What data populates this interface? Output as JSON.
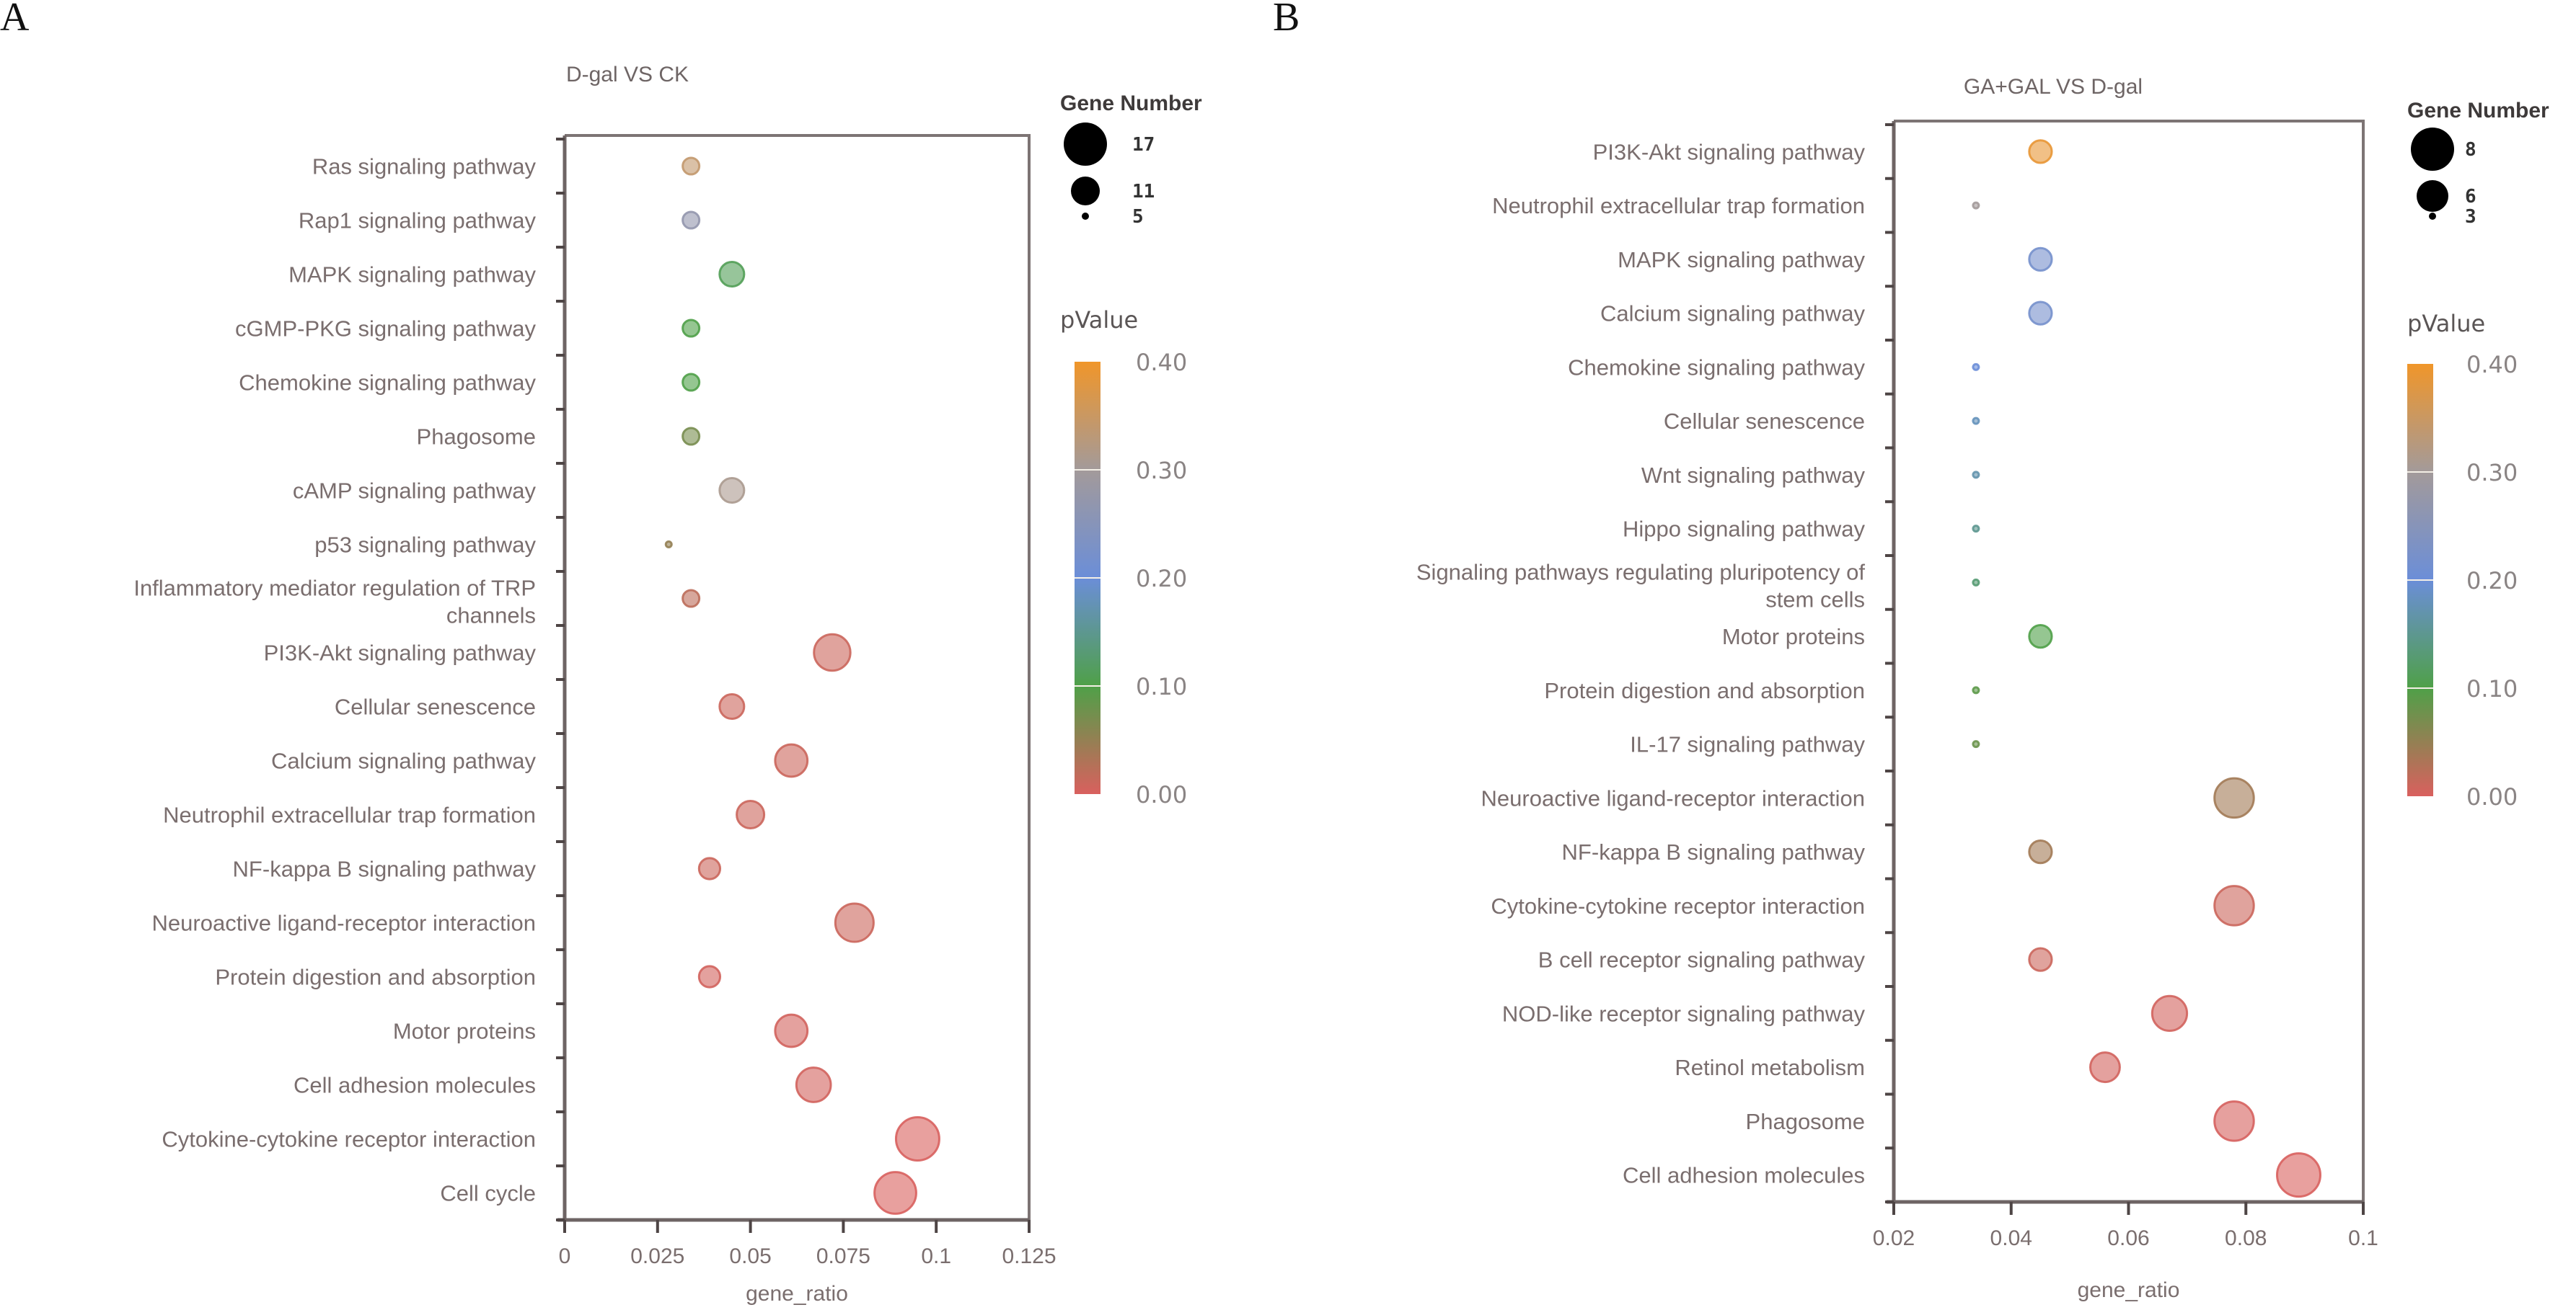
{
  "panels": [
    "A",
    "B"
  ],
  "chart_data": [
    {
      "type": "scatter",
      "subtype": "bubble",
      "panel": "A",
      "title": "D-gal VS CK",
      "xlabel": "gene_ratio",
      "ylabel": "",
      "xlim": [
        0,
        0.125
      ],
      "xticks": [
        0,
        0.025,
        0.05,
        0.075,
        0.1,
        0.125
      ],
      "xtick_labels": [
        "0",
        "0.025",
        "0.05",
        "0.075",
        "0.1",
        "0.125"
      ],
      "grid": false,
      "size_legend": {
        "title": "Gene Number",
        "values": [
          17,
          11,
          5
        ],
        "placement": "top-right"
      },
      "color_legend": {
        "title": "pValue",
        "range": [
          0.0,
          0.4
        ],
        "ticks": [
          "0.40",
          "0.30",
          "0.20",
          "0.10",
          "0.00"
        ],
        "placement": "right"
      },
      "points": [
        {
          "term": "Ras signaling pathway",
          "gene_ratio": 0.034,
          "gene_number": 6,
          "pvalue": 0.34
        },
        {
          "term": "Rap1 signaling pathway",
          "gene_ratio": 0.034,
          "gene_number": 6,
          "pvalue": 0.27
        },
        {
          "term": "MAPK signaling pathway",
          "gene_ratio": 0.045,
          "gene_number": 8,
          "pvalue": 0.11
        },
        {
          "term": "cGMP-PKG signaling pathway",
          "gene_ratio": 0.034,
          "gene_number": 6,
          "pvalue": 0.1
        },
        {
          "term": "Chemokine signaling pathway",
          "gene_ratio": 0.034,
          "gene_number": 6,
          "pvalue": 0.1
        },
        {
          "term": "Phagosome",
          "gene_ratio": 0.034,
          "gene_number": 6,
          "pvalue": 0.07
        },
        {
          "term": "cAMP signaling pathway",
          "gene_ratio": 0.045,
          "gene_number": 8,
          "pvalue": 0.31
        },
        {
          "term": "p53 signaling pathway",
          "gene_ratio": 0.028,
          "gene_number": 5,
          "pvalue": 0.05
        },
        {
          "term": "Inflammatory mediator regulation of TRP channels",
          "gene_ratio": 0.034,
          "gene_number": 6,
          "pvalue": 0.02
        },
        {
          "term": "PI3K-Akt signaling pathway",
          "gene_ratio": 0.072,
          "gene_number": 13,
          "pvalue": 0.01
        },
        {
          "term": "Cellular senescence",
          "gene_ratio": 0.045,
          "gene_number": 8,
          "pvalue": 0.01
        },
        {
          "term": "Calcium signaling pathway",
          "gene_ratio": 0.061,
          "gene_number": 11,
          "pvalue": 0.01
        },
        {
          "term": "Neutrophil extracellular trap formation",
          "gene_ratio": 0.05,
          "gene_number": 9,
          "pvalue": 0.01
        },
        {
          "term": "NF-kappa B signaling pathway",
          "gene_ratio": 0.039,
          "gene_number": 7,
          "pvalue": 0.01
        },
        {
          "term": "Neuroactive ligand-receptor interaction",
          "gene_ratio": 0.078,
          "gene_number": 14,
          "pvalue": 0.01
        },
        {
          "term": "Protein digestion and absorption",
          "gene_ratio": 0.039,
          "gene_number": 7,
          "pvalue": 0.005
        },
        {
          "term": "Motor proteins",
          "gene_ratio": 0.061,
          "gene_number": 11,
          "pvalue": 0.005
        },
        {
          "term": "Cell adhesion molecules",
          "gene_ratio": 0.067,
          "gene_number": 12,
          "pvalue": 0.005
        },
        {
          "term": "Cytokine-cytokine receptor interaction",
          "gene_ratio": 0.095,
          "gene_number": 17,
          "pvalue": 0.001
        },
        {
          "term": "Cell cycle",
          "gene_ratio": 0.089,
          "gene_number": 16,
          "pvalue": 0.001
        }
      ]
    },
    {
      "type": "scatter",
      "subtype": "bubble",
      "panel": "B",
      "title": "GA+GAL VS D-gal",
      "xlabel": "gene_ratio",
      "ylabel": "",
      "xlim": [
        0.02,
        0.1
      ],
      "xticks": [
        0.02,
        0.04,
        0.06,
        0.08,
        0.1
      ],
      "xtick_labels": [
        "0.02",
        "0.04",
        "0.06",
        "0.08",
        "0.1"
      ],
      "grid": false,
      "size_legend": {
        "title": "Gene Number",
        "values": [
          8,
          6,
          3
        ],
        "placement": "top-right"
      },
      "color_legend": {
        "title": "pValue",
        "range": [
          0.0,
          0.4
        ],
        "ticks": [
          "0.40",
          "0.30",
          "0.20",
          "0.10",
          "0.00"
        ],
        "placement": "right"
      },
      "points": [
        {
          "term": "PI3K-Akt signaling pathway",
          "gene_ratio": 0.045,
          "gene_number": 4,
          "pvalue": 0.39
        },
        {
          "term": "Neutrophil extracellular trap formation",
          "gene_ratio": 0.034,
          "gene_number": 3,
          "pvalue": 0.3
        },
        {
          "term": "MAPK signaling pathway",
          "gene_ratio": 0.045,
          "gene_number": 4,
          "pvalue": 0.22
        },
        {
          "term": "Calcium signaling pathway",
          "gene_ratio": 0.045,
          "gene_number": 4,
          "pvalue": 0.22
        },
        {
          "term": "Chemokine signaling pathway",
          "gene_ratio": 0.034,
          "gene_number": 3,
          "pvalue": 0.2
        },
        {
          "term": "Cellular senescence",
          "gene_ratio": 0.034,
          "gene_number": 3,
          "pvalue": 0.18
        },
        {
          "term": "Wnt signaling pathway",
          "gene_ratio": 0.034,
          "gene_number": 3,
          "pvalue": 0.17
        },
        {
          "term": "Hippo signaling pathway",
          "gene_ratio": 0.034,
          "gene_number": 3,
          "pvalue": 0.15
        },
        {
          "term": "Signaling pathways regulating pluripotency of stem cells",
          "gene_ratio": 0.034,
          "gene_number": 3,
          "pvalue": 0.13
        },
        {
          "term": "Motor proteins",
          "gene_ratio": 0.045,
          "gene_number": 4,
          "pvalue": 0.1
        },
        {
          "term": "Protein digestion and absorption",
          "gene_ratio": 0.034,
          "gene_number": 3,
          "pvalue": 0.09
        },
        {
          "term": "IL-17 signaling pathway",
          "gene_ratio": 0.034,
          "gene_number": 3,
          "pvalue": 0.08
        },
        {
          "term": "Neuroactive ligand-receptor interaction",
          "gene_ratio": 0.078,
          "gene_number": 7,
          "pvalue": 0.04
        },
        {
          "term": "NF-kappa B signaling pathway",
          "gene_ratio": 0.045,
          "gene_number": 4,
          "pvalue": 0.04
        },
        {
          "term": "Cytokine-cytokine receptor interaction",
          "gene_ratio": 0.078,
          "gene_number": 7,
          "pvalue": 0.01
        },
        {
          "term": "B cell receptor signaling pathway",
          "gene_ratio": 0.045,
          "gene_number": 4,
          "pvalue": 0.01
        },
        {
          "term": "NOD-like receptor signaling pathway",
          "gene_ratio": 0.067,
          "gene_number": 6,
          "pvalue": 0.005
        },
        {
          "term": "Retinol metabolism",
          "gene_ratio": 0.056,
          "gene_number": 5,
          "pvalue": 0.005
        },
        {
          "term": "Phagosome",
          "gene_ratio": 0.078,
          "gene_number": 7,
          "pvalue": 0.002
        },
        {
          "term": "Cell adhesion molecules",
          "gene_ratio": 0.089,
          "gene_number": 8,
          "pvalue": 0.001
        }
      ]
    }
  ],
  "colorscale": [
    "#d9605e",
    "#4fa048",
    "#6b8ed8",
    "#a39a9a",
    "#f0962a"
  ]
}
